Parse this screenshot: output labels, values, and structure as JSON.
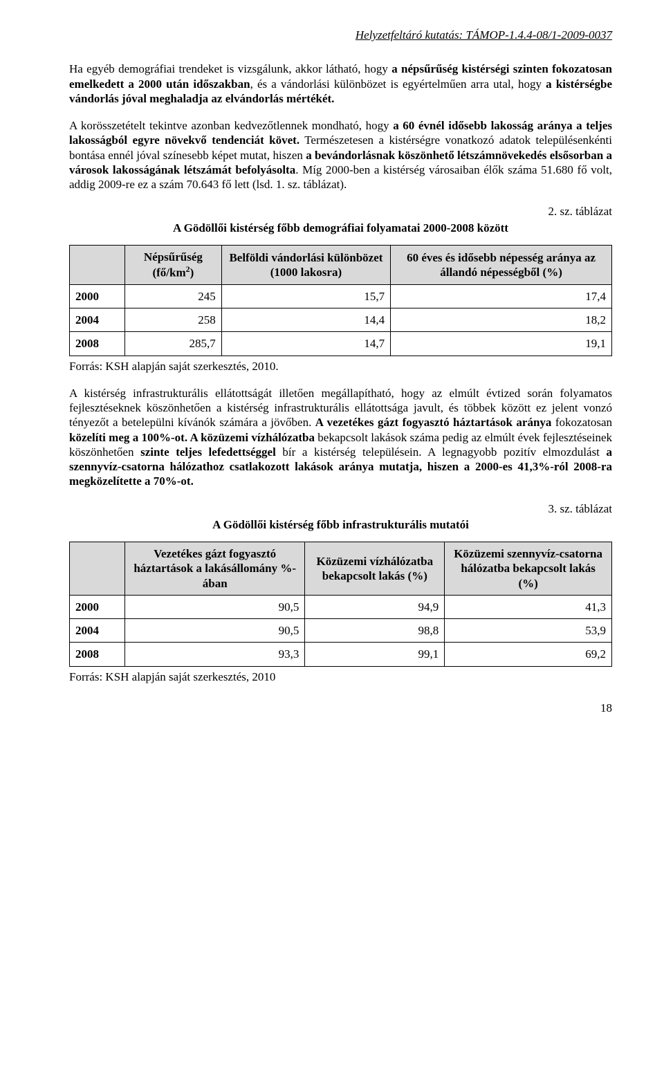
{
  "header": "Helyzetfeltáró kutatás: TÁMOP-1.4.4-08/1-2009-0037",
  "para1_pre": "Ha egyéb demográfiai trendeket is vizsgálunk, akkor látható, hogy ",
  "para1_b1": "a népsűrűség kistérségi szinten fokozatosan emelkedett a 2000 után időszakban",
  "para1_mid": ", és a vándorlási különbözet is egyértelműen arra utal, hogy ",
  "para1_b2": "a kistérségbe vándorlás jóval meghaladja az elvándorlás mértékét.",
  "para2_pre": "A korösszetételt tekintve azonban kedvezőtlennek mondható, hogy ",
  "para2_b1": "a 60 évnél idősebb lakosság aránya a teljes lakosságból egyre növekvő tendenciát követ.",
  "para2_mid1": " Természetesen a kistérségre vonatkozó adatok településenkénti bontása ennél jóval színesebb képet mutat, hiszen ",
  "para2_b2": "a bevándorlásnak köszönhető létszámnövekedés elsősorban a városok lakosságának létszámát befolyásolta",
  "para2_mid2": ". Míg 2000-ben a kistérség városaiban élők száma 51.680 fő volt, addig 2009-re ez a szám 70.643 fő lett (lsd. 1. sz. táblázat).",
  "t2_caption_right": "2. sz. táblázat",
  "t2_caption_center": "A Gödöllői kistérség főbb demográfiai folyamatai 2000-2008 között",
  "t2": {
    "cols": [
      "",
      "Népsűrűség (fő/km²)",
      "Belföldi vándorlási különbözet (1000 lakosra)",
      "60 éves és idősebb népesség aránya az állandó népességből (%)"
    ],
    "c1_pre": "Népsűrűség (fő/km",
    "c1_sup": "2",
    "c1_post": ")",
    "rows": [
      {
        "year": "2000",
        "v1": "245",
        "v2": "15,7",
        "v3": "17,4"
      },
      {
        "year": "2004",
        "v1": "258",
        "v2": "14,4",
        "v3": "18,2"
      },
      {
        "year": "2008",
        "v1": "285,7",
        "v2": "14,7",
        "v3": "19,1"
      }
    ]
  },
  "t2_source": "Forrás: KSH alapján saját szerkesztés, 2010.",
  "para3_pre": "A kistérség infrastrukturális ellátottságát illetően megállapítható, hogy az elmúlt évtized során folyamatos fejlesztéseknek köszönhetően a kistérség infrastrukturális ellátottsága javult, és többek között ez jelent vonzó tényezőt a betelepülni kívánók számára a jövőben. ",
  "para3_b1": "A vezetékes gázt fogyasztó háztartások aránya",
  "para3_mid1": " fokozatosan ",
  "para3_b2": "közelíti meg a 100%-ot. A közüzemi vízhálózatba",
  "para3_mid2": " bekapcsolt lakások száma pedig az elmúlt évek fejlesztéseinek köszönhetően ",
  "para3_b3": "szinte teljes lefedettséggel",
  "para3_mid3": " bír a kistérség településein. A legnagyobb pozitív elmozdulást ",
  "para3_b4": "a szennyvíz-csatorna hálózathoz csatlakozott lakások aránya mutatja, hiszen a 2000-es 41,3%-ról 2008-ra megközelítette a 70%-ot.",
  "t3_caption_right": "3. sz. táblázat",
  "t3_caption_center": "A Gödöllői kistérség főbb infrastrukturális mutatói",
  "t3": {
    "cols": [
      "",
      "Vezetékes gázt fogyasztó háztartások a lakásállomány %-ában",
      "Közüzemi vízhálózatba bekapcsolt lakás (%)",
      "Közüzemi szennyvíz-csatorna hálózatba bekapcsolt lakás (%)"
    ],
    "rows": [
      {
        "year": "2000",
        "v1": "90,5",
        "v2": "94,9",
        "v3": "41,3"
      },
      {
        "year": "2004",
        "v1": "90,5",
        "v2": "98,8",
        "v3": "53,9"
      },
      {
        "year": "2008",
        "v1": "93,3",
        "v2": "99,1",
        "v3": "69,2"
      }
    ]
  },
  "t3_source": "Forrás: KSH alapján saját szerkesztés, 2010",
  "pagenum": "18",
  "colors": {
    "text": "#000000",
    "table_header_bg": "#d9d9d9",
    "border": "#000000",
    "background": "#ffffff"
  }
}
